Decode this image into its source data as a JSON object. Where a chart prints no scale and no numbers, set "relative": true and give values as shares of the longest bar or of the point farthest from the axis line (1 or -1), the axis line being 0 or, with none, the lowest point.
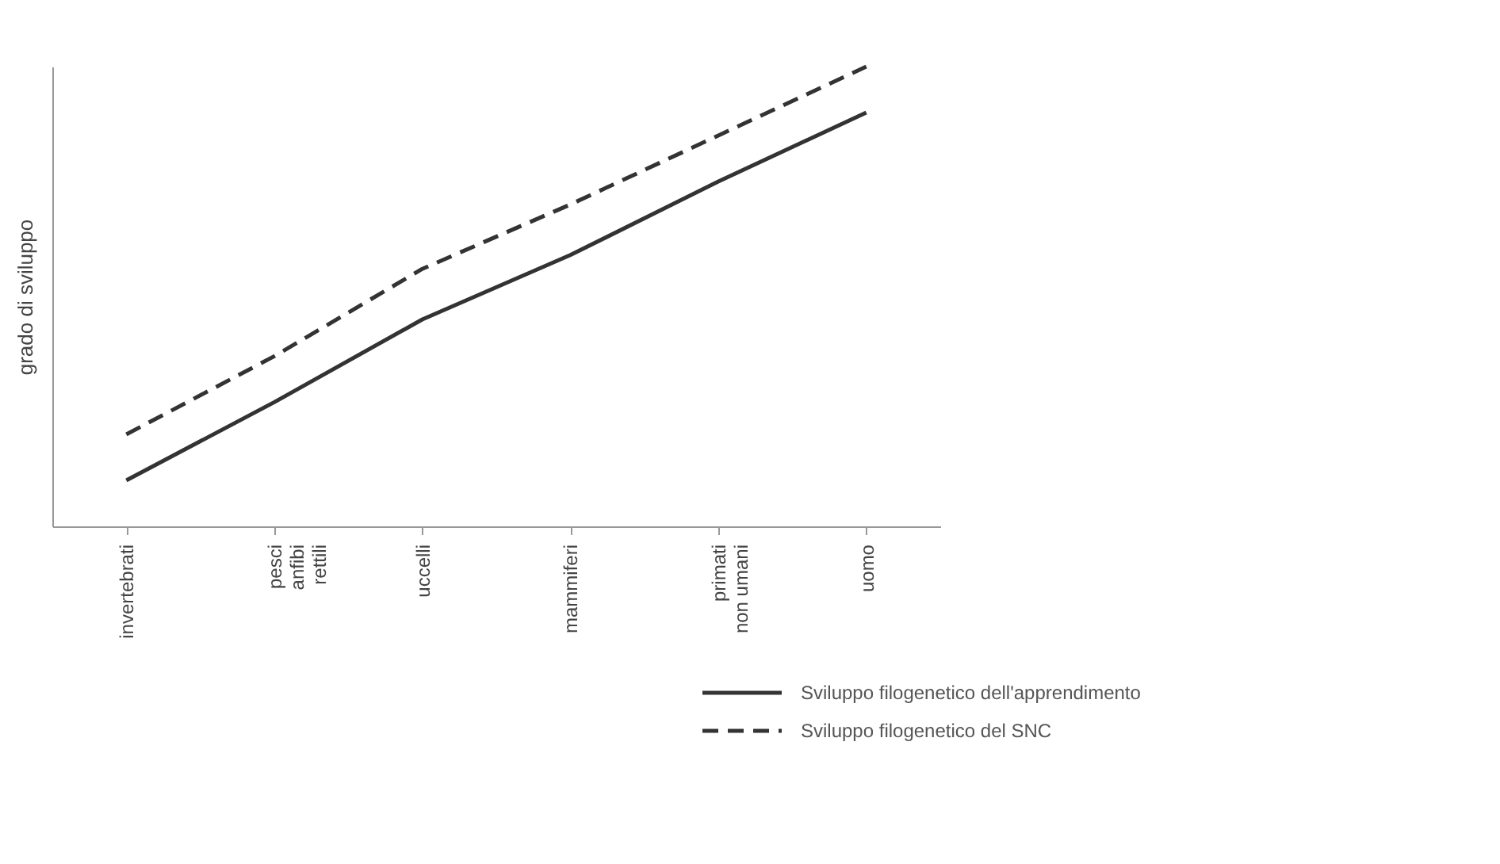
{
  "chart_data": {
    "type": "line",
    "relative": true,
    "ylabel": "grado di sviluppo",
    "categories": [
      "invertebrati",
      "pesci\nanfibi\nrettili",
      "uccelli",
      "mammiferi",
      "primati\nnon umani",
      "uomo"
    ],
    "series": [
      {
        "name": "Sviluppo filogenetico dell'apprendimento",
        "color": "#333333",
        "line_style": "solid",
        "values": [
          0.1,
          0.27,
          0.45,
          0.59,
          0.75,
          0.9
        ]
      },
      {
        "name": "Sviluppo filogenetico del SNC",
        "color": "#333333",
        "line_style": "dashed",
        "values": [
          0.2,
          0.37,
          0.56,
          0.7,
          0.85,
          1.0
        ]
      }
    ],
    "tick_labels": "x",
    "legend": "bottom right",
    "grid": false,
    "marker": "none"
  }
}
